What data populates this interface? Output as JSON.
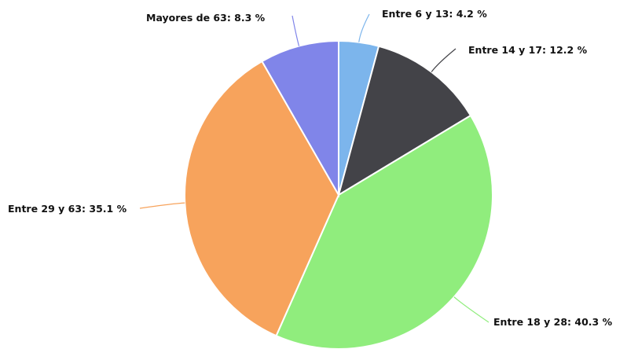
{
  "chart_data": {
    "type": "pie",
    "categories": [
      "Entre 6 y 13",
      "Entre 14 y 17",
      "Entre 18 y 28",
      "Entre 29 y 63",
      "Mayores de 63"
    ],
    "values": [
      4.2,
      12.2,
      40.3,
      35.1,
      8.3
    ],
    "unit": "%",
    "colors": [
      "#7cb5ec",
      "#434348",
      "#90ed7d",
      "#f7a35c",
      "#8085e9"
    ],
    "labels": [
      "Entre 6 y 13: 4.2 %",
      "Entre 14 y 17: 12.2 %",
      "Entre 18 y 28: 40.3 %",
      "Entre 29 y 63: 35.1 %",
      "Mayores de 63: 8.3 %"
    ],
    "start_angle": "12 o'clock",
    "direction": "clockwise",
    "legend": "none"
  }
}
